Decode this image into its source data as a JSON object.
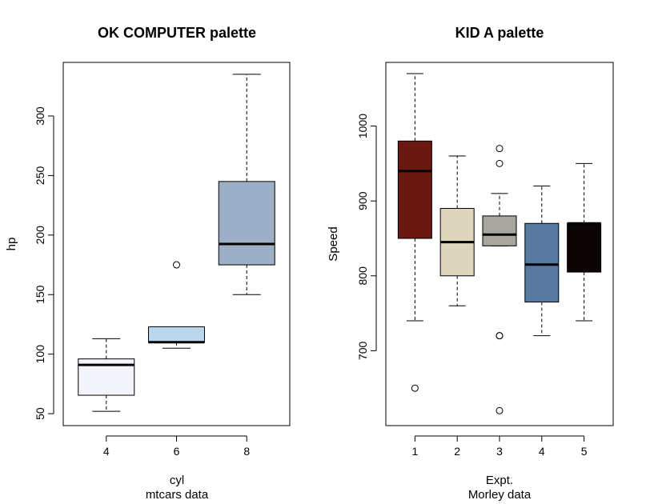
{
  "chart_data": [
    {
      "type": "box",
      "title": "OK COMPUTER palette",
      "xlabel": "cyl",
      "sublabel": "mtcars data",
      "ylabel": "hp",
      "ylim": [
        40,
        345
      ],
      "yticks": [
        50,
        100,
        150,
        200,
        250,
        300
      ],
      "categories": [
        "4",
        "6",
        "8"
      ],
      "boxes": [
        {
          "category": "4",
          "whisker_low": 52,
          "q1": 65.5,
          "median": 91,
          "q3": 96,
          "whisker_high": 113,
          "outliers": [],
          "fill": "#f3f5fa"
        },
        {
          "category": "6",
          "whisker_low": 105,
          "q1": 110,
          "median": 110,
          "q3": 123,
          "whisker_high": 123,
          "outliers": [
            175
          ],
          "fill": "#b9d6ec"
        },
        {
          "category": "8",
          "whisker_low": 150,
          "q1": 175,
          "median": 192.5,
          "q3": 245,
          "whisker_high": 335,
          "outliers": [],
          "fill": "#9dafc6"
        }
      ]
    },
    {
      "type": "box",
      "title": "KID A palette",
      "xlabel": "Expt.",
      "sublabel": "Morley data",
      "ylabel": "Speed",
      "ylim": [
        600,
        1085
      ],
      "yticks": [
        700,
        800,
        900,
        1000
      ],
      "categories": [
        "1",
        "2",
        "3",
        "4",
        "5"
      ],
      "boxes": [
        {
          "category": "1",
          "whisker_low": 740,
          "q1": 850,
          "median": 940,
          "q3": 980,
          "whisker_high": 1070,
          "outliers": [
            650
          ],
          "fill": "#6b1810"
        },
        {
          "category": "2",
          "whisker_low": 760,
          "q1": 800,
          "median": 845,
          "q3": 890,
          "whisker_high": 960,
          "outliers": [],
          "fill": "#ddd6bd"
        },
        {
          "category": "3",
          "whisker_low": 840,
          "q1": 840,
          "median": 855,
          "q3": 880,
          "whisker_high": 910,
          "outliers": [
            620,
            720,
            720,
            950,
            970
          ],
          "fill": "#a7a5a0"
        },
        {
          "category": "4",
          "whisker_low": 720,
          "q1": 765,
          "median": 815,
          "q3": 870,
          "whisker_high": 920,
          "outliers": [],
          "fill": "#5778a0"
        },
        {
          "category": "5",
          "whisker_low": 740,
          "q1": 805,
          "median": 870,
          "q3": 870,
          "whisker_high": 950,
          "outliers": [],
          "fill": "#0a0504"
        }
      ]
    }
  ]
}
